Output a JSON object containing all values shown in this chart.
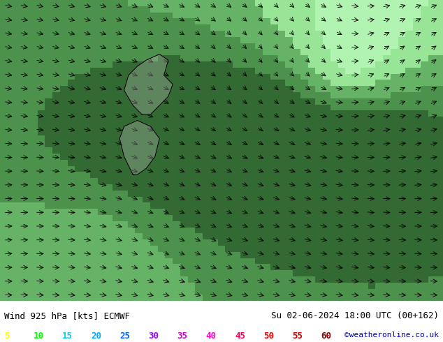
{
  "title_left": "Wind 925 hPa [kts] ECMWF",
  "title_right": "Su 02-06-2024 18:00 UTC (00+162)",
  "credit": "©weatheronline.co.uk",
  "legend_values": [
    5,
    10,
    15,
    20,
    25,
    30,
    35,
    40,
    45,
    50,
    55,
    60
  ],
  "legend_colors": [
    "#ffff00",
    "#00ff00",
    "#00ccff",
    "#00aaff",
    "#0066ff",
    "#9900ff",
    "#cc00cc",
    "#ff00cc",
    "#ff0055",
    "#ff0000",
    "#cc0000",
    "#880000"
  ],
  "bg_color": "#ffffff",
  "map_bg": "#ffffff",
  "wind_arrow_color": "#000000",
  "calm_color_low": "#90ee90",
  "calm_color_mid": "#008800",
  "calm_color_high": "#006600",
  "teal_color": "#008080",
  "fig_width": 6.34,
  "fig_height": 4.9
}
